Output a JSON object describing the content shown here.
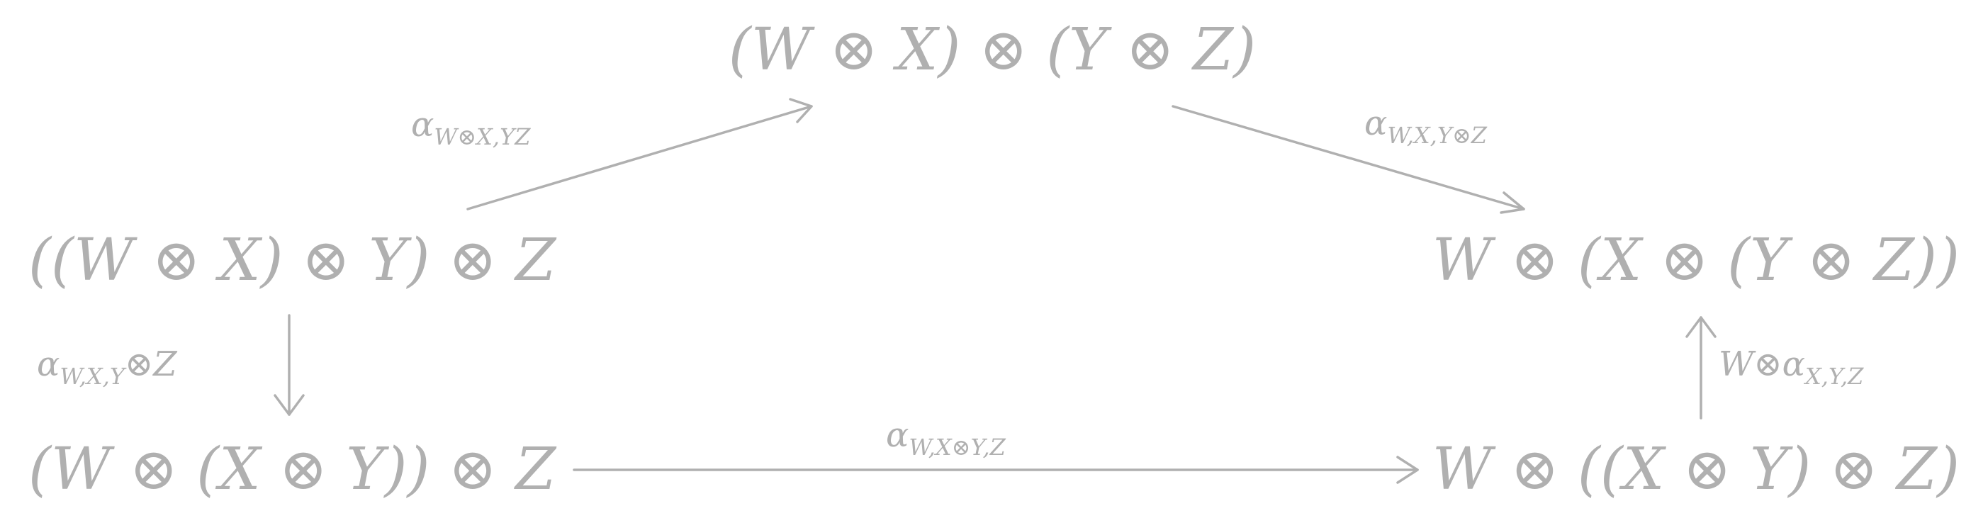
{
  "diagram": {
    "nodes": {
      "top": "(W ⊗ X) ⊗ (Y ⊗ Z)",
      "left": "((W ⊗ X) ⊗ Y) ⊗ Z",
      "right": "W ⊗ (X ⊗ (Y ⊗ Z))",
      "bottom_left": "(W ⊗ (X ⊗ Y)) ⊗ Z",
      "bottom_right": "W ⊗ ((X ⊗ Y) ⊗ Z)"
    },
    "arrows": {
      "left_to_top": {
        "symbol": "α",
        "subscript": "W⊗X,YZ"
      },
      "top_to_right": {
        "symbol": "α",
        "subscript": "W,X,Y⊗Z"
      },
      "left_to_bottom_left": {
        "symbol": "α",
        "subscript": "W,X,Y",
        "suffix": "⊗Z"
      },
      "bottom_left_to_bottom_right": {
        "symbol": "α",
        "subscript": "W,X⊗Y,Z"
      },
      "bottom_right_to_right": {
        "prefix": "W⊗",
        "symbol": "α",
        "subscript": "X,Y,Z"
      }
    },
    "color": "#b0b0b0"
  }
}
